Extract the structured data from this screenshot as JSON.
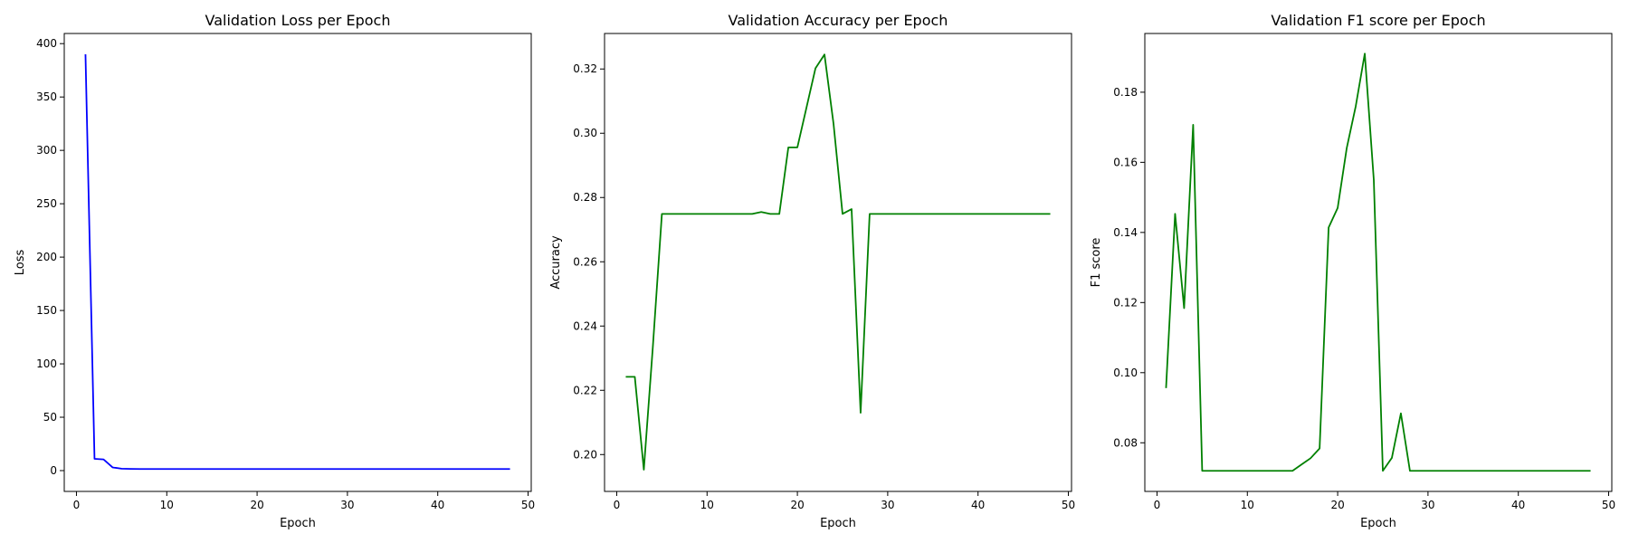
{
  "chart_data": [
    {
      "type": "line",
      "title": "Validation Loss per Epoch",
      "xlabel": "Epoch",
      "ylabel": "Loss",
      "xlim": [
        -1.35,
        50.35
      ],
      "ylim": [
        -19.5,
        409.5
      ],
      "xticks": [
        0,
        10,
        20,
        30,
        40,
        50
      ],
      "yticks": [
        0,
        50,
        100,
        150,
        200,
        250,
        300,
        350,
        400
      ],
      "xtick_labels": [
        "0",
        "10",
        "20",
        "30",
        "40",
        "50"
      ],
      "ytick_labels": [
        "0",
        "50",
        "100",
        "150",
        "200",
        "250",
        "300",
        "350",
        "400"
      ],
      "grid": false,
      "color": "#0000ff",
      "series": [
        {
          "x": [
            1,
            2,
            3,
            4,
            5,
            6,
            7,
            8,
            9,
            10,
            11,
            12,
            13,
            14,
            15,
            16,
            17,
            18,
            19,
            20,
            21,
            22,
            23,
            24,
            25,
            26,
            27,
            28,
            29,
            30,
            31,
            32,
            33,
            34,
            35,
            36,
            37,
            38,
            39,
            40,
            41,
            42,
            43,
            44,
            45,
            46,
            47,
            48
          ],
          "values": [
            390.0,
            11.0,
            10.5,
            3.0,
            1.8,
            1.6,
            1.5,
            1.5,
            1.5,
            1.5,
            1.5,
            1.5,
            1.5,
            1.5,
            1.5,
            1.5,
            1.5,
            1.5,
            1.5,
            1.5,
            1.5,
            1.5,
            1.5,
            1.5,
            1.5,
            1.5,
            1.5,
            1.5,
            1.5,
            1.5,
            1.5,
            1.5,
            1.5,
            1.5,
            1.5,
            1.5,
            1.5,
            1.5,
            1.5,
            1.5,
            1.5,
            1.5,
            1.5,
            1.5,
            1.5,
            1.5,
            1.5,
            1.5
          ]
        }
      ]
    },
    {
      "type": "line",
      "title": "Validation Accuracy per Epoch",
      "xlabel": "Epoch",
      "ylabel": "Accuracy",
      "xlim": [
        -1.35,
        50.35
      ],
      "ylim": [
        0.18853,
        0.33105
      ],
      "xticks": [
        0,
        10,
        20,
        30,
        40,
        50
      ],
      "yticks": [
        0.2,
        0.22,
        0.24,
        0.26,
        0.28,
        0.3,
        0.32
      ],
      "xtick_labels": [
        "0",
        "10",
        "20",
        "30",
        "40",
        "50"
      ],
      "ytick_labels": [
        "0.20",
        "0.22",
        "0.24",
        "0.26",
        "0.28",
        "0.30",
        "0.32"
      ],
      "grid": false,
      "color": "#008000",
      "series": [
        {
          "x": [
            1,
            2,
            3,
            4,
            5,
            6,
            7,
            8,
            9,
            10,
            11,
            12,
            13,
            14,
            15,
            16,
            17,
            18,
            19,
            20,
            21,
            22,
            23,
            24,
            25,
            26,
            27,
            28,
            29,
            30,
            31,
            32,
            33,
            34,
            35,
            36,
            37,
            38,
            39,
            40,
            41,
            42,
            43,
            44,
            45,
            46,
            47,
            48
          ],
          "values": [
            0.2242,
            0.2242,
            0.1953,
            0.2336,
            0.2749,
            0.2749,
            0.2749,
            0.2749,
            0.2749,
            0.2749,
            0.2749,
            0.2749,
            0.2749,
            0.2749,
            0.2749,
            0.2755,
            0.2749,
            0.2749,
            0.2956,
            0.2956,
            0.3079,
            0.3202,
            0.3245,
            0.303,
            0.2749,
            0.2764,
            0.213,
            0.2749,
            0.2749,
            0.2749,
            0.2749,
            0.2749,
            0.2749,
            0.2749,
            0.2749,
            0.2749,
            0.2749,
            0.2749,
            0.2749,
            0.2749,
            0.2749,
            0.2749,
            0.2749,
            0.2749,
            0.2749,
            0.2749,
            0.2749,
            0.2749
          ]
        }
      ]
    },
    {
      "type": "line",
      "title": "Validation F1 score per Epoch",
      "xlabel": "Epoch",
      "ylabel": "F1 score",
      "xlim": [
        -1.35,
        50.35
      ],
      "ylim": [
        0.06613,
        0.19675
      ],
      "xticks": [
        0,
        10,
        20,
        30,
        40,
        50
      ],
      "yticks": [
        0.08,
        0.1,
        0.12,
        0.14,
        0.16,
        0.18
      ],
      "xtick_labels": [
        "0",
        "10",
        "20",
        "30",
        "40",
        "50"
      ],
      "ytick_labels": [
        "0.08",
        "0.10",
        "0.12",
        "0.14",
        "0.16",
        "0.18"
      ],
      "grid": false,
      "color": "#008000",
      "series": [
        {
          "x": [
            1,
            2,
            3,
            4,
            5,
            6,
            7,
            8,
            9,
            10,
            11,
            12,
            13,
            14,
            15,
            16,
            17,
            18,
            19,
            20,
            21,
            22,
            23,
            24,
            25,
            26,
            27,
            28,
            29,
            30,
            31,
            32,
            33,
            34,
            35,
            36,
            37,
            38,
            39,
            40,
            41,
            42,
            43,
            44,
            45,
            46,
            47,
            48
          ],
          "values": [
            0.0956,
            0.1453,
            0.1184,
            0.1707,
            0.072,
            0.072,
            0.072,
            0.072,
            0.072,
            0.072,
            0.072,
            0.072,
            0.072,
            0.072,
            0.072,
            0.0738,
            0.0756,
            0.0784,
            0.1414,
            0.147,
            0.164,
            0.176,
            0.191,
            0.155,
            0.072,
            0.0757,
            0.0884,
            0.072,
            0.072,
            0.072,
            0.072,
            0.072,
            0.072,
            0.072,
            0.072,
            0.072,
            0.072,
            0.072,
            0.072,
            0.072,
            0.072,
            0.072,
            0.072,
            0.072,
            0.072,
            0.072,
            0.072,
            0.072
          ]
        }
      ]
    }
  ]
}
